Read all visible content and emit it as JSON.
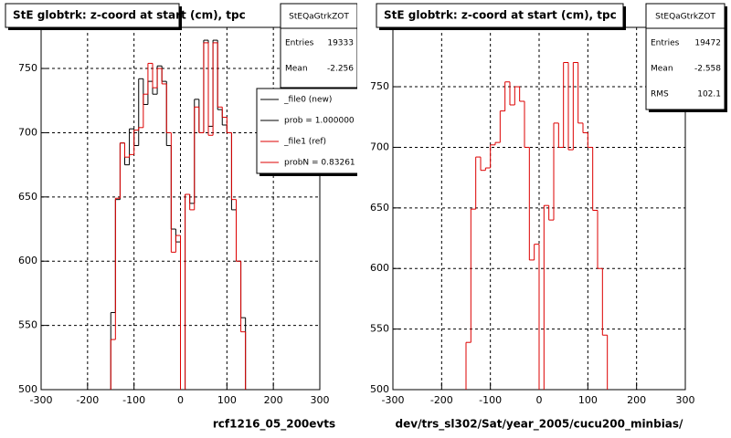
{
  "chart_data": [
    {
      "type": "histogram",
      "title": "StE globtrk: z-coord at start (cm), tpc",
      "x_label": "rcf1216_05_200evts",
      "bins": [
        -150,
        -140,
        -130,
        -120,
        -110,
        -100,
        -90,
        -80,
        -70,
        -60,
        -50,
        -40,
        -30,
        -20,
        -10,
        0,
        10,
        20,
        30,
        40,
        50,
        60,
        70,
        80,
        90,
        100,
        110,
        120,
        130,
        140
      ],
      "series": [
        {
          "name": "_file0 (new)",
          "color": "#000000",
          "values": [
            560,
            648,
            692,
            675,
            703,
            690,
            742,
            722,
            740,
            730,
            752,
            740,
            690,
            625,
            615,
            480,
            652,
            645,
            726,
            700,
            772,
            705,
            772,
            718,
            706,
            700,
            640,
            600,
            556
          ]
        },
        {
          "name": "_file1 (ref)",
          "color": "#dd0000",
          "values": [
            539,
            649,
            692,
            681,
            683,
            702,
            704,
            730,
            754,
            735,
            750,
            738,
            700,
            607,
            620,
            480,
            652,
            640,
            720,
            700,
            770,
            698,
            770,
            720,
            712,
            700,
            648,
            600,
            545
          ]
        }
      ],
      "legend_notes": [
        "prob = 1.000000",
        "probN = 0.83261"
      ],
      "stats": {
        "title": "StEQaGtrkZOT",
        "rows": [
          {
            "label": "Entries",
            "value": 19333
          },
          {
            "label": "Mean",
            "value": -2.256
          }
        ]
      },
      "xlim": [
        -300,
        300
      ],
      "xticks": [
        -300,
        -200,
        -100,
        0,
        100,
        200,
        300
      ],
      "ylim": [
        500,
        782
      ],
      "yticks": [
        500,
        550,
        600,
        650,
        700,
        750
      ],
      "grid": true
    },
    {
      "type": "histogram",
      "title": "StE globtrk: z-coord at start (cm), tpc",
      "x_label": "dev/trs_sl302/Sat/year_2005/cucu200_minbias/",
      "bins": [
        -150,
        -140,
        -130,
        -120,
        -110,
        -100,
        -90,
        -80,
        -70,
        -60,
        -50,
        -40,
        -30,
        -20,
        -10,
        0,
        10,
        20,
        30,
        40,
        50,
        60,
        70,
        80,
        90,
        100,
        110,
        120,
        130,
        140
      ],
      "series": [
        {
          "name": "_file1 (ref)",
          "color": "#dd0000",
          "values": [
            539,
            649,
            692,
            681,
            683,
            702,
            704,
            730,
            754,
            735,
            750,
            738,
            700,
            607,
            620,
            480,
            652,
            640,
            720,
            700,
            770,
            698,
            770,
            720,
            712,
            700,
            648,
            600,
            545
          ]
        }
      ],
      "stats": {
        "title": "StEQaGtrkZOT",
        "rows": [
          {
            "label": "Entries",
            "value": 19472
          },
          {
            "label": "Mean",
            "value": -2.558
          },
          {
            "label": "RMS",
            "value": 102.1
          }
        ]
      },
      "xlim": [
        -300,
        300
      ],
      "xticks": [
        -300,
        -200,
        -100,
        0,
        100,
        200,
        300
      ],
      "ylim": [
        500,
        799
      ],
      "yticks": [
        500,
        550,
        600,
        650,
        700,
        750
      ],
      "grid": true
    }
  ]
}
